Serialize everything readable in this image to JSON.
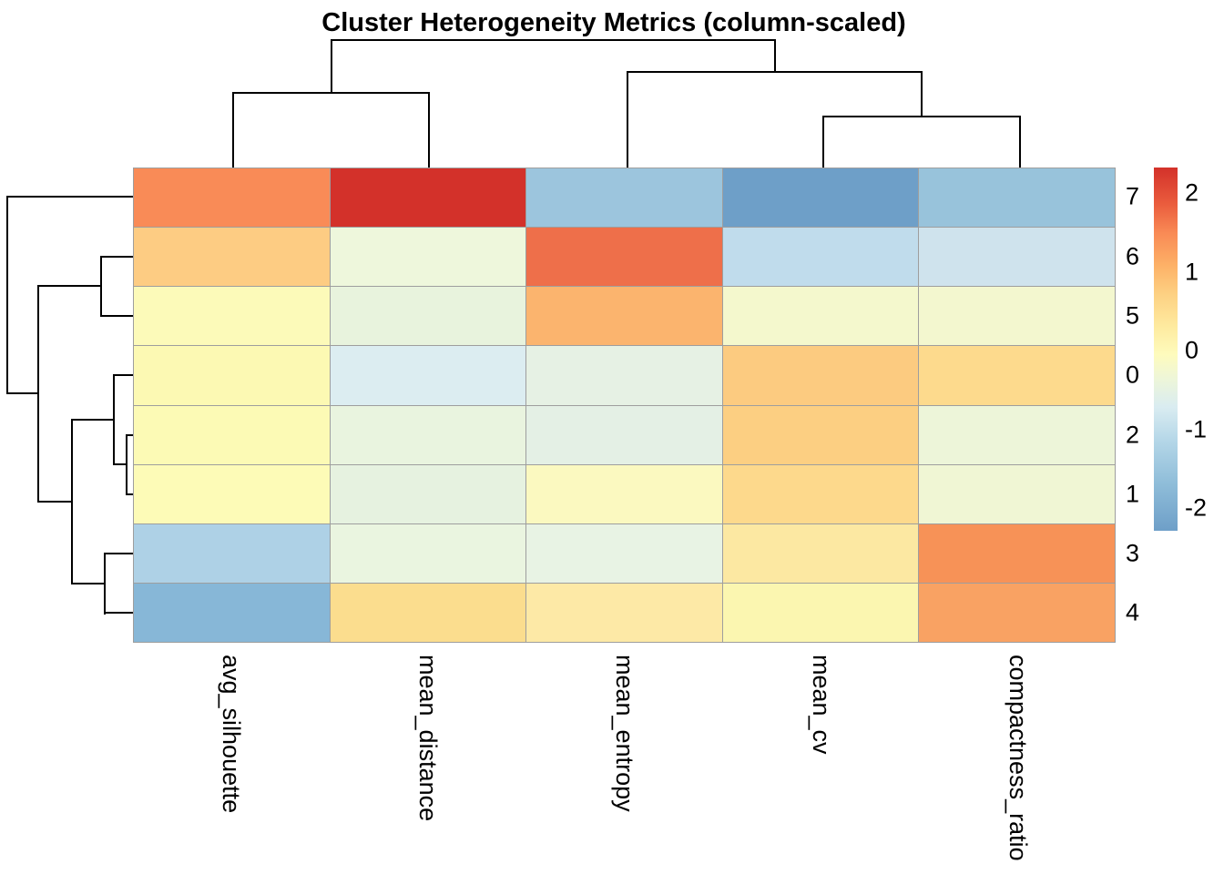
{
  "title": "Cluster Heterogeneity Metrics (column-scaled)",
  "chart_data": {
    "type": "heatmap",
    "title": "Cluster Heterogeneity Metrics (column-scaled)",
    "columns": [
      "avg_silhouette",
      "mean_distance",
      "mean_entropy",
      "mean_cv",
      "compactness_ratio"
    ],
    "rows": [
      "7",
      "6",
      "5",
      "0",
      "2",
      "1",
      "3",
      "4"
    ],
    "values": [
      [
        1.45,
        2.3,
        -1.45,
        -2.3,
        -1.5
      ],
      [
        0.8,
        -0.3,
        1.75,
        -0.95,
        -0.75
      ],
      [
        0.1,
        -0.35,
        1.05,
        -0.05,
        -0.05
      ],
      [
        0.1,
        -0.65,
        -0.45,
        0.8,
        0.6
      ],
      [
        0.1,
        -0.35,
        -0.5,
        0.75,
        -0.25
      ],
      [
        0.05,
        -0.4,
        0.05,
        0.6,
        -0.15
      ],
      [
        -1.2,
        -0.35,
        -0.4,
        0.4,
        1.45
      ],
      [
        -1.8,
        0.55,
        0.4,
        0.15,
        1.25
      ]
    ],
    "cell_colors": [
      [
        "#f98b57",
        "#d3312a",
        "#9cc5dd",
        "#6e9fc8",
        "#98c3db"
      ],
      [
        "#fdcc83",
        "#eef7dc",
        "#ee6f4a",
        "#c0dcec",
        "#cfe3ed"
      ],
      [
        "#fcfab9",
        "#e8f3dd",
        "#fbb46e",
        "#f4f8cd",
        "#f3f7cf"
      ],
      [
        "#fcf9b3",
        "#dcedf1",
        "#e6f1e4",
        "#fccb80",
        "#fdda8d"
      ],
      [
        "#fcfab5",
        "#e9f4df",
        "#e4f0e5",
        "#fccf82",
        "#edf5d9"
      ],
      [
        "#fdfbb7",
        "#e6f2e0",
        "#fbf9c0",
        "#fdd98c",
        "#f0f6d4"
      ],
      [
        "#aed1e6",
        "#eaf5e0",
        "#e8f3e4",
        "#fce8a2",
        "#f79257"
      ],
      [
        "#87b7d7",
        "#fbdd8e",
        "#fde9a6",
        "#fbf6b0",
        "#f9a263"
      ]
    ],
    "colormap": "RdYlBu reversed (blue = low, red = high)",
    "color_range": [
      -2.3,
      2.3
    ],
    "grid": true,
    "border_color": "#9e9e9e",
    "legend": {
      "position": "right",
      "ticks": [
        "2",
        "1",
        "0",
        "-1",
        "-2"
      ],
      "tick_values": [
        2,
        1,
        0,
        -1,
        -2
      ],
      "gradient_stops": [
        {
          "pos": 0.0,
          "color": "#d3312a"
        },
        {
          "pos": 0.1,
          "color": "#ea5c3d"
        },
        {
          "pos": 0.18,
          "color": "#f98a55"
        },
        {
          "pos": 0.27,
          "color": "#fdb167"
        },
        {
          "pos": 0.35,
          "color": "#fdd183"
        },
        {
          "pos": 0.44,
          "color": "#feeba0"
        },
        {
          "pos": 0.515,
          "color": "#fefbbd"
        },
        {
          "pos": 0.58,
          "color": "#eef6d8"
        },
        {
          "pos": 0.66,
          "color": "#d9ecf1"
        },
        {
          "pos": 0.75,
          "color": "#b5d7e8"
        },
        {
          "pos": 0.87,
          "color": "#8fbdd9"
        },
        {
          "pos": 1.0,
          "color": "#6e9fc8"
        }
      ]
    },
    "column_dendrogram": "((avg_silhouette,mean_distance),(mean_entropy,(mean_cv,compactness_ratio)))",
    "row_dendrogram": "(7,((6,5),((0,(2,1)),(3,4))))"
  }
}
